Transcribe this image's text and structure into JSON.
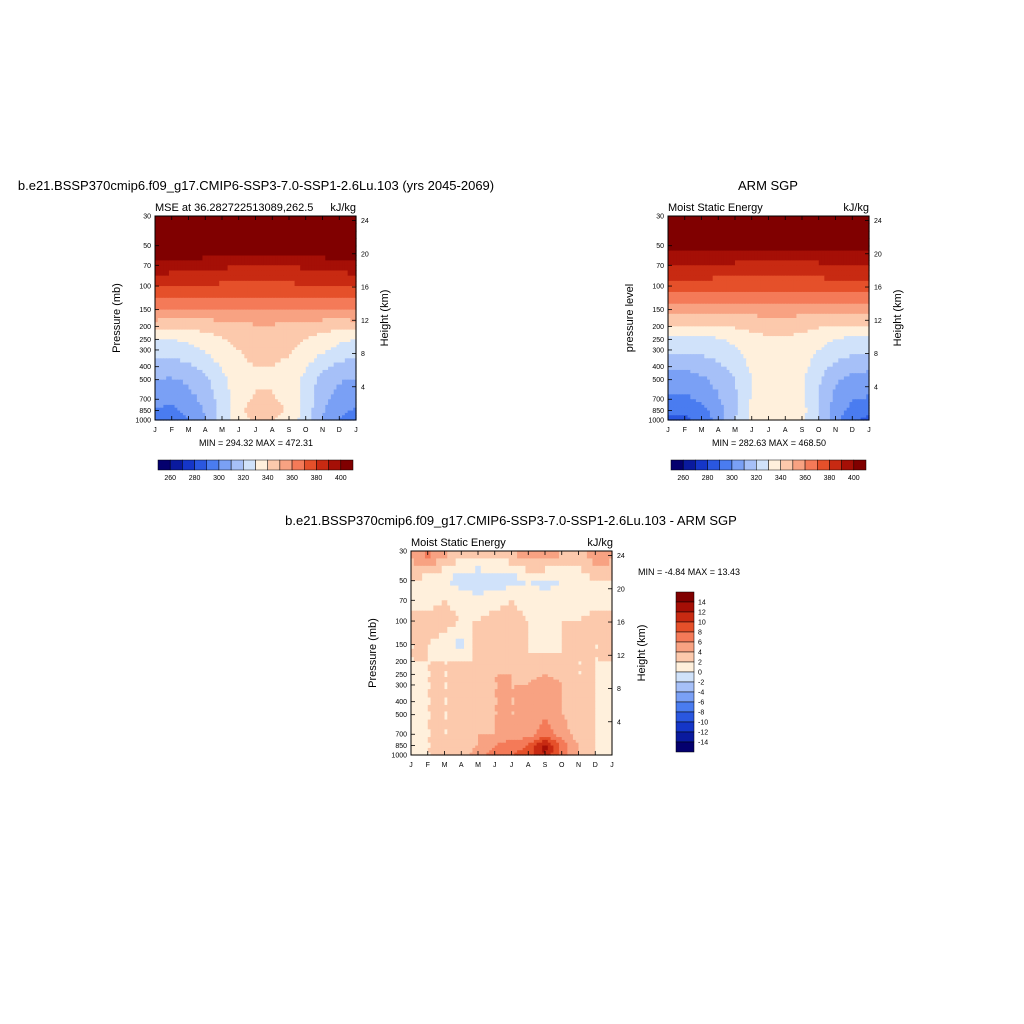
{
  "panels": [
    {
      "main_title": "b.e21.BSSP370cmip6.f09_g17.CMIP6-SSP3-7.0-SSP1-2.6Lu.103 (yrs 2045-2069)",
      "left_string": "MSE at 36.282722513089,262.5",
      "right_string": "kJ/kg",
      "ylabel": "Pressure (mb)",
      "ylabel_right": "Height (km)",
      "minmax": "MIN = 294.32 MAX = 472.31"
    },
    {
      "main_title": "ARM SGP",
      "left_string": "Moist Static Energy",
      "right_string": "kJ/kg",
      "ylabel": "pressure level",
      "ylabel_right": "Height (km)",
      "minmax": "MIN = 282.63 MAX = 468.50"
    },
    {
      "main_title": "b.e21.BSSP370cmip6.f09_g17.CMIP6-SSP3-7.0-SSP1-2.6Lu.103 - ARM SGP",
      "left_string": "Moist Static Energy",
      "right_string": "kJ/kg",
      "ylabel": "Pressure (mb)",
      "ylabel_right": "Height (km)",
      "minmax": "MIN =  -4.84 MAX =  13.43"
    }
  ],
  "chart_data": [
    {
      "type": "heatmap",
      "x": [
        "J",
        "F",
        "M",
        "A",
        "M",
        "J",
        "J",
        "A",
        "S",
        "O",
        "N",
        "D",
        "J"
      ],
      "y_ticks": [
        "30",
        "50",
        "70",
        "100",
        "150",
        "200",
        "250",
        "300",
        "400",
        "500",
        "700",
        "850",
        "1000"
      ],
      "y_ticks_right": [
        "24",
        "20",
        "16",
        "12",
        "8",
        "4"
      ],
      "y_levels": [
        30,
        50,
        70,
        100,
        150,
        200,
        250,
        300,
        400,
        500,
        700,
        850,
        1000
      ],
      "values": [
        [
          472,
          472,
          472,
          472,
          472,
          472,
          472,
          472,
          472,
          472,
          472,
          472,
          472
        ],
        [
          412,
          412,
          412,
          411,
          410,
          410,
          410,
          410,
          410,
          410,
          411,
          412,
          412
        ],
        [
          396,
          395,
          394,
          393,
          392,
          391,
          391,
          391,
          391,
          392,
          393,
          394,
          396
        ],
        [
          382,
          381,
          380,
          379,
          378,
          378,
          378,
          378,
          378,
          379,
          380,
          381,
          382
        ],
        [
          362,
          361,
          360,
          359,
          358,
          358,
          358,
          358,
          358,
          359,
          360,
          361,
          362
        ],
        [
          343,
          342,
          343,
          344,
          346,
          348,
          349,
          349,
          348,
          346,
          344,
          343,
          343
        ],
        [
          330,
          330,
          332,
          335,
          339,
          343,
          345,
          345,
          343,
          340,
          336,
          332,
          330
        ],
        [
          325,
          325,
          327,
          331,
          336,
          340,
          343,
          343,
          341,
          337,
          332,
          327,
          325
        ],
        [
          315,
          315,
          318,
          323,
          331,
          338,
          340,
          340,
          338,
          331,
          322,
          317,
          315
        ],
        [
          310,
          309,
          312,
          318,
          327,
          336,
          339,
          339,
          336,
          327,
          316,
          311,
          310
        ],
        [
          303,
          302,
          306,
          314,
          324,
          337,
          341,
          341,
          337,
          326,
          313,
          305,
          303
        ],
        [
          299,
          298,
          302,
          311,
          324,
          338,
          344,
          344,
          339,
          326,
          311,
          302,
          299
        ],
        [
          296,
          295,
          300,
          310,
          325,
          337,
          341,
          340,
          336,
          325,
          309,
          300,
          296
        ]
      ],
      "levels": [
        260,
        270,
        280,
        290,
        300,
        310,
        320,
        330,
        340,
        350,
        360,
        370,
        380,
        390,
        400
      ],
      "colorbar_labels": [
        "260",
        "280",
        "300",
        "320",
        "340",
        "360",
        "380",
        "400"
      ]
    },
    {
      "type": "heatmap",
      "x": [
        "J",
        "F",
        "M",
        "A",
        "M",
        "J",
        "J",
        "A",
        "S",
        "O",
        "N",
        "D",
        "J"
      ],
      "y_ticks": [
        "30",
        "50",
        "70",
        "100",
        "150",
        "200",
        "250",
        "300",
        "400",
        "500",
        "700",
        "850",
        "1000"
      ],
      "y_ticks_right": [
        "24",
        "20",
        "16",
        "12",
        "8",
        "4"
      ],
      "y_levels": [
        30,
        50,
        70,
        100,
        150,
        200,
        250,
        300,
        400,
        500,
        700,
        850,
        1000
      ],
      "values": [
        [
          468,
          468,
          468,
          468,
          468,
          468,
          468,
          468,
          468,
          468,
          468,
          468,
          468
        ],
        [
          405,
          405,
          404,
          404,
          404,
          404,
          404,
          404,
          404,
          404,
          404,
          405,
          405
        ],
        [
          391,
          390,
          389,
          388,
          388,
          387,
          387,
          387,
          387,
          388,
          389,
          390,
          391
        ],
        [
          377,
          376,
          375,
          375,
          374,
          374,
          374,
          374,
          374,
          375,
          375,
          376,
          377
        ],
        [
          356,
          355,
          355,
          354,
          354,
          354,
          354,
          354,
          354,
          354,
          355,
          355,
          356
        ],
        [
          339,
          339,
          339,
          340,
          341,
          343,
          344,
          344,
          343,
          341,
          340,
          339,
          339
        ],
        [
          326,
          326,
          327,
          329,
          332,
          336,
          339,
          339,
          337,
          333,
          330,
          327,
          326
        ],
        [
          322,
          322,
          323,
          325,
          329,
          334,
          337,
          337,
          335,
          330,
          326,
          323,
          322
        ],
        [
          312,
          312,
          314,
          318,
          324,
          332,
          336,
          336,
          333,
          325,
          317,
          313,
          312
        ],
        [
          306,
          305,
          308,
          313,
          320,
          330,
          335,
          335,
          331,
          321,
          311,
          307,
          306
        ],
        [
          299,
          298,
          302,
          309,
          318,
          331,
          336,
          336,
          332,
          320,
          307,
          300,
          299
        ],
        [
          294,
          293,
          297,
          305,
          318,
          333,
          339,
          340,
          334,
          320,
          305,
          297,
          294
        ],
        [
          286,
          287,
          293,
          304,
          320,
          333,
          337,
          336,
          331,
          320,
          303,
          292,
          286
        ]
      ],
      "levels": [
        260,
        270,
        280,
        290,
        300,
        310,
        320,
        330,
        340,
        350,
        360,
        370,
        380,
        390,
        400
      ],
      "colorbar_labels": [
        "260",
        "280",
        "300",
        "320",
        "340",
        "360",
        "380",
        "400"
      ]
    },
    {
      "type": "heatmap",
      "x": [
        "J",
        "F",
        "M",
        "A",
        "M",
        "J",
        "J",
        "A",
        "S",
        "O",
        "N",
        "D",
        "J"
      ],
      "y_ticks": [
        "30",
        "50",
        "70",
        "100",
        "150",
        "200",
        "250",
        "300",
        "400",
        "500",
        "700",
        "850",
        "1000"
      ],
      "y_ticks_right": [
        "24",
        "20",
        "16",
        "12",
        "8",
        "4"
      ],
      "y_levels": [
        30,
        50,
        70,
        100,
        150,
        200,
        250,
        300,
        400,
        500,
        700,
        850,
        1000
      ],
      "values": [
        [
          5,
          7,
          5,
          3,
          3,
          3,
          4,
          6,
          7,
          4,
          3,
          6,
          5
        ],
        [
          2,
          1,
          0,
          -1,
          -2,
          -1,
          -1,
          0,
          -1,
          0,
          1,
          2,
          2
        ],
        [
          1,
          1,
          2,
          1,
          1,
          1,
          2,
          1,
          1,
          1,
          1,
          1,
          1
        ],
        [
          3,
          3,
          3,
          2,
          2,
          3,
          3,
          2,
          2,
          2,
          2,
          3,
          3
        ],
        [
          2,
          2,
          1,
          -1,
          3,
          3,
          3,
          2,
          1,
          2,
          3,
          2,
          2
        ],
        [
          2,
          2,
          2,
          2,
          2,
          3,
          3,
          2,
          3,
          2,
          2,
          2,
          2
        ],
        [
          1,
          2,
          2,
          2,
          3,
          4,
          4,
          3,
          4,
          3,
          2,
          2,
          1
        ],
        [
          1,
          2,
          2,
          2,
          3,
          4,
          4,
          4,
          6,
          4,
          3,
          2,
          1
        ],
        [
          1,
          2,
          2,
          2,
          3,
          4,
          4,
          4,
          6,
          4,
          3,
          2,
          1
        ],
        [
          1,
          2,
          2,
          2,
          3,
          4,
          4,
          4,
          6,
          4,
          3,
          2,
          1
        ],
        [
          1,
          2,
          2,
          2,
          4,
          4,
          5,
          5,
          7,
          5,
          3,
          2,
          1
        ],
        [
          1,
          2,
          2,
          3,
          4,
          6,
          7,
          8,
          13,
          7,
          4,
          2,
          1
        ],
        [
          1,
          2,
          2,
          3,
          5,
          7,
          8,
          9,
          12,
          7,
          4,
          2,
          1
        ]
      ],
      "levels": [
        -14,
        -12,
        -10,
        -8,
        -6,
        -4,
        -2,
        0,
        2,
        4,
        6,
        8,
        10,
        12,
        14
      ],
      "colorbar_labels": [
        "14",
        "12",
        "10",
        "8",
        "6",
        "4",
        "2",
        "0",
        "-2",
        "-4",
        "-6",
        "-8",
        "-10",
        "-12",
        "-14"
      ]
    }
  ],
  "colors": {
    "palette": [
      "#04006e",
      "#0a1a9e",
      "#1536c8",
      "#2a57e0",
      "#4a7cf0",
      "#7aa0f5",
      "#a6c0f8",
      "#d0e2fa",
      "#fff0dc",
      "#fcc9ac",
      "#f8a282",
      "#f47a58",
      "#e5502a",
      "#c82a12",
      "#a50f06",
      "#800000"
    ]
  }
}
